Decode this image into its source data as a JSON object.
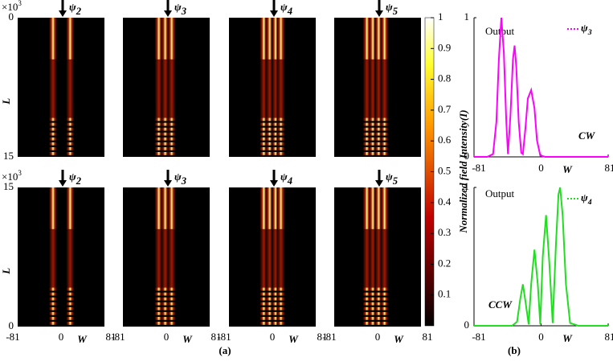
{
  "chart_data": [
    {
      "type": "heatmap",
      "panel_label": "(a)",
      "symbol": "ψ",
      "subscripts": [
        "2",
        "3",
        "4",
        "5",
        "2",
        "3",
        "4",
        "5"
      ],
      "ylabel": "L",
      "y_multiplier": "×10",
      "y_multiplier_exp": "3",
      "rows": [
        {
          "ylim": [
            15,
            0
          ],
          "yticks": [
            0,
            15
          ]
        },
        {
          "ylim": [
            0,
            15
          ],
          "yticks": [
            15,
            0
          ]
        }
      ],
      "xlim": [
        -81,
        81
      ],
      "xticks": [
        -81,
        0,
        81
      ],
      "xlabel": "W",
      "colorbar": {
        "label": "Normalized field  Intensity(I)",
        "lim": [
          0,
          1
        ],
        "ticks": [
          0.1,
          0.2,
          0.3,
          0.4,
          0.5,
          0.6,
          0.7,
          0.8,
          0.9,
          1
        ]
      }
    },
    {
      "type": "line",
      "title": "Output",
      "annotation": "CW",
      "x": [
        -81,
        -65,
        -58,
        -54,
        -51,
        -48,
        -45,
        -42,
        -40,
        -37,
        -34,
        -32,
        -30,
        -27,
        -24,
        -22,
        -19,
        -16,
        -12,
        -8,
        -5,
        -1,
        5,
        81
      ],
      "series": [
        {
          "name": "ψ",
          "name_sub": "3",
          "color": "#ff00ff",
          "values": [
            0,
            0,
            0.02,
            0.25,
            0.7,
            1.0,
            0.75,
            0.25,
            0.02,
            0.3,
            0.7,
            0.8,
            0.65,
            0.25,
            0.03,
            0.02,
            0.2,
            0.42,
            0.48,
            0.35,
            0.12,
            0.01,
            0,
            0
          ]
        }
      ],
      "xlim": [
        -81,
        81
      ],
      "xticks": [
        -81,
        0,
        81
      ],
      "ylim": [
        0,
        1
      ],
      "yticks": [
        0,
        1
      ],
      "xlabel": "W"
    },
    {
      "type": "line",
      "title": "Output",
      "annotation": "CCW",
      "panel_label": "(b)",
      "x": [
        -81,
        -35,
        -29,
        -25,
        -22,
        -19,
        -15,
        -12,
        -8,
        -4,
        -1,
        2,
        6,
        10,
        14,
        18,
        21,
        23,
        26,
        30,
        35,
        45,
        81
      ],
      "series": [
        {
          "name": "ψ",
          "name_sub": "4",
          "color": "#22dd22",
          "values": [
            0,
            0,
            0.03,
            0.2,
            0.3,
            0.18,
            0.01,
            0.3,
            0.55,
            0.3,
            0.01,
            0.5,
            0.8,
            0.45,
            0.02,
            0.6,
            0.95,
            1.0,
            0.8,
            0.3,
            0.02,
            0,
            0
          ]
        }
      ],
      "xlim": [
        -81,
        81
      ],
      "xticks": [
        -81,
        0,
        81
      ],
      "ylim": [
        0,
        1
      ],
      "yticks": [
        0,
        1
      ],
      "xlabel": "W"
    }
  ]
}
